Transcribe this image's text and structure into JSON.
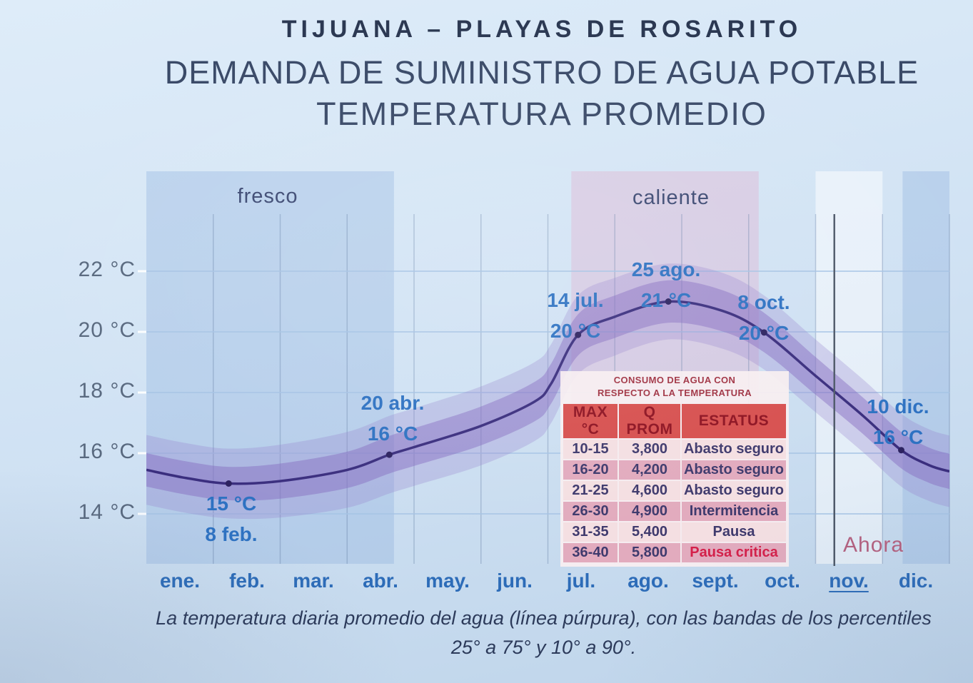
{
  "slide": {
    "title": "TIJUANA – PLAYAS DE ROSARITO",
    "subtitle1": "DEMANDA DE SUMINISTRO DE AGUA POTABLE",
    "subtitle2": "TEMPERATURA PROMEDIO",
    "caption_line1": "La temperatura diaria promedio del agua (línea púrpura), con las bandas de los percentiles",
    "caption_line2": "25° a 75° y 10° a 90°."
  },
  "chart_data": {
    "type": "line",
    "title": "Temperatura promedio diaria del agua",
    "ylabel": "°C",
    "ylim": [
      13.2,
      23.3
    ],
    "y_tick_values": [
      22,
      20,
      18,
      16,
      14
    ],
    "y_tick_labels": [
      "22 °C",
      "20 °C",
      "18 °C",
      "16 °C",
      "14 °C"
    ],
    "categories": [
      "ene.",
      "feb.",
      "mar.",
      "abr.",
      "may.",
      "jun.",
      "jul.",
      "ago.",
      "sept.",
      "oct.",
      "nov.",
      "dic."
    ],
    "current_month_index": 10,
    "grid": true,
    "line_color": "#3a2e7e",
    "inner_band_color": "rgba(130,105,190,0.45)",
    "outer_band_color": "rgba(150,130,205,0.30)",
    "band_percentiles": {
      "inner": "25° a 75°",
      "outer": "10° a 90°"
    },
    "series": [
      {
        "name": "temperatura promedio del agua (°C)",
        "points": [
          {
            "m": 0.0,
            "t": 15.45,
            "i": 0.55,
            "o": 1.15
          },
          {
            "m": 0.6,
            "t": 15.18,
            "i": 0.55,
            "o": 1.15
          },
          {
            "m": 1.23,
            "t": 15.0,
            "i": 0.55,
            "o": 1.15
          },
          {
            "m": 2.0,
            "t": 15.08,
            "i": 0.58,
            "o": 1.2
          },
          {
            "m": 3.0,
            "t": 15.45,
            "i": 0.6,
            "o": 1.25
          },
          {
            "m": 3.63,
            "t": 15.95,
            "i": 0.62,
            "o": 1.28
          },
          {
            "m": 4.0,
            "t": 16.2,
            "i": 0.62,
            "o": 1.28
          },
          {
            "m": 5.0,
            "t": 16.9,
            "i": 0.64,
            "o": 1.3
          },
          {
            "m": 5.8,
            "t": 17.7,
            "i": 0.65,
            "o": 1.3
          },
          {
            "m": 6.05,
            "t": 18.3,
            "i": 0.66,
            "o": 1.3
          },
          {
            "m": 6.45,
            "t": 19.9,
            "i": 0.68,
            "o": 1.3
          },
          {
            "m": 7.0,
            "t": 20.5,
            "i": 0.7,
            "o": 1.28
          },
          {
            "m": 7.8,
            "t": 21.0,
            "i": 0.7,
            "o": 1.25
          },
          {
            "m": 8.6,
            "t": 20.7,
            "i": 0.68,
            "o": 1.25
          },
          {
            "m": 9.23,
            "t": 19.98,
            "i": 0.65,
            "o": 1.22
          },
          {
            "m": 10.0,
            "t": 18.55,
            "i": 0.62,
            "o": 1.2
          },
          {
            "m": 10.7,
            "t": 17.25,
            "i": 0.6,
            "o": 1.2
          },
          {
            "m": 11.28,
            "t": 16.1,
            "i": 0.6,
            "o": 1.2
          },
          {
            "m": 11.7,
            "t": 15.6,
            "i": 0.58,
            "o": 1.18
          },
          {
            "m": 12.0,
            "t": 15.4,
            "i": 0.58,
            "o": 1.18
          }
        ]
      }
    ],
    "marked_points": [
      {
        "m": 1.23,
        "t": 15.0
      },
      {
        "m": 3.63,
        "t": 15.95
      },
      {
        "m": 6.45,
        "t": 19.9
      },
      {
        "m": 7.8,
        "t": 21.0
      },
      {
        "m": 9.23,
        "t": 19.98
      },
      {
        "m": 11.28,
        "t": 16.1
      }
    ],
    "annotations": [
      {
        "date": "8 feb.",
        "temp": "15 °C"
      },
      {
        "date": "20 abr.",
        "temp": "16 °C"
      },
      {
        "date": "14 jul.",
        "temp": "20 °C"
      },
      {
        "date": "25 ago.",
        "temp": "21 °C"
      },
      {
        "date": "8 oct.",
        "temp": "20 °C"
      },
      {
        "date": "10 dic.",
        "temp": "16 °C"
      }
    ],
    "zones": [
      {
        "label": "fresco",
        "from_month": 0.0,
        "to_month": 3.7,
        "color": "rgba(140,175,220,0.35)"
      },
      {
        "label": "caliente",
        "from_month": 6.35,
        "to_month": 9.15,
        "color": "rgba(225,165,200,0.35)"
      },
      {
        "label": "",
        "from_month": 11.3,
        "to_month": 12.0,
        "color": "rgba(140,175,220,0.35)"
      },
      {
        "label": "",
        "from_month": 10.0,
        "to_month": 11.0,
        "color": "rgba(255,255,255,0.50)"
      }
    ],
    "zone_labels": {
      "fresco": "fresco",
      "caliente": "caliente"
    },
    "now_line": {
      "label": "Ahora",
      "month": 10.28
    }
  },
  "table": {
    "title_line1": "CONSUMO DE AGUA CON",
    "title_line2": "RESPECTO A LA TEMPERATURA",
    "headers": [
      "MAX °C",
      "Q PROM",
      "ESTATUS"
    ],
    "rows": [
      {
        "range": "10-15",
        "q": "3,800",
        "status": "Abasto seguro"
      },
      {
        "range": "16-20",
        "q": "4,200",
        "status": "Abasto seguro"
      },
      {
        "range": "21-25",
        "q": "4,600",
        "status": "Abasto seguro"
      },
      {
        "range": "26-30",
        "q": "4,900",
        "status": "Intermitencia"
      },
      {
        "range": "31-35",
        "q": "5,400",
        "status": "Pausa"
      },
      {
        "range": "36-40",
        "q": "5,800",
        "status": "Pausa critica"
      }
    ]
  },
  "colors": {
    "accent_blue_text": "#2d6cb8",
    "curve_purple": "#3a2e7e",
    "now_label_pink": "#b4617f",
    "table_header_red": "#d7504f",
    "status_critical_red": "#d4204a"
  }
}
